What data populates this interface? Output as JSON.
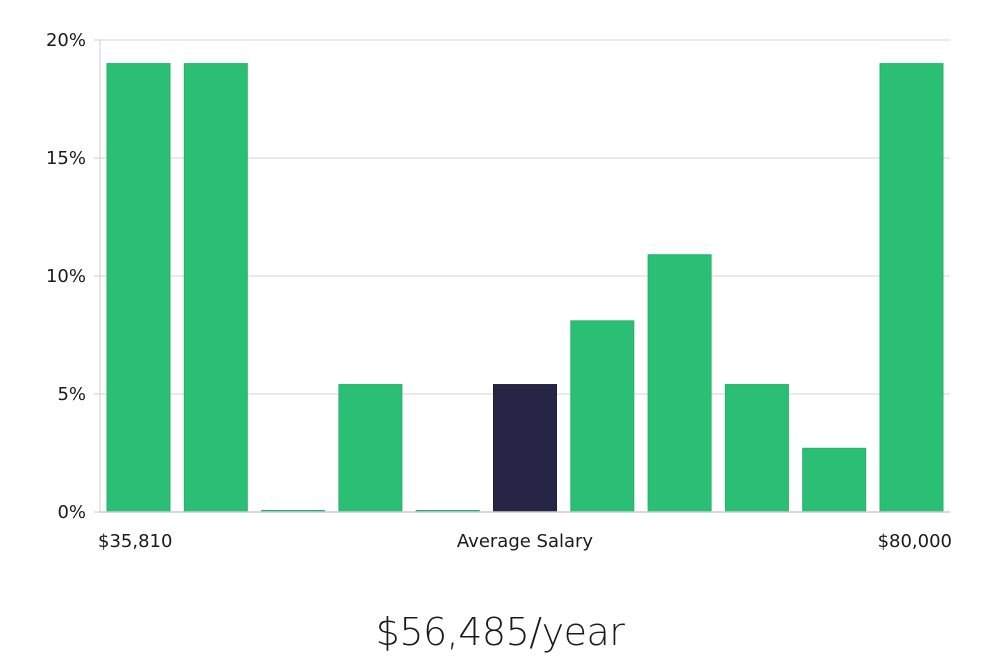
{
  "chart_data": {
    "type": "bar",
    "title": "",
    "xlabel": "Average Salary",
    "ylabel": "",
    "ylim": [
      0,
      20
    ],
    "y_ticks": [
      "0%",
      "5%",
      "10%",
      "15%",
      "20%"
    ],
    "y_tick_values": [
      0,
      5,
      10,
      15,
      20
    ],
    "x_range_labels": {
      "min": "$35,810",
      "center": "Average Salary",
      "max": "$80,000"
    },
    "bins": [
      1,
      2,
      3,
      4,
      5,
      6,
      7,
      8,
      9,
      10,
      11
    ],
    "values": [
      19.0,
      19.0,
      0,
      5.4,
      0,
      5.4,
      8.1,
      10.9,
      5.4,
      2.7,
      19.0
    ],
    "highlight_index": 5,
    "colors": {
      "bar": "#2bbf76",
      "highlight": "#262545",
      "grid": "#e3e3e3",
      "axis": "#cccccc"
    }
  },
  "salary_label": "$56,485/year"
}
